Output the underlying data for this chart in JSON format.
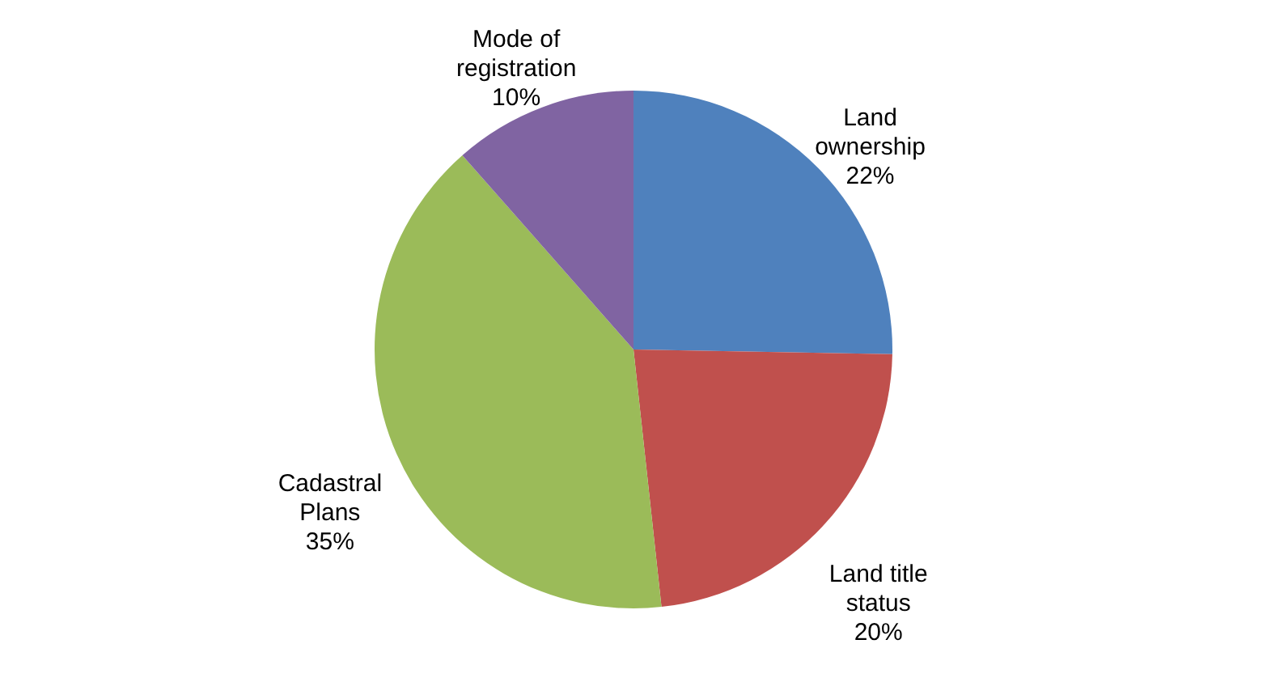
{
  "chart_data": {
    "type": "pie",
    "categories": [
      "Land ownership",
      "Land title status",
      "Cadastral Plans",
      "Mode of registration"
    ],
    "values": [
      22,
      20,
      35,
      10
    ],
    "value_labels": [
      "22%",
      "20%",
      "35%",
      "10%"
    ],
    "colors": [
      "#4f81bd",
      "#c0504d",
      "#9bbb59",
      "#8064a2"
    ],
    "legend": false
  }
}
